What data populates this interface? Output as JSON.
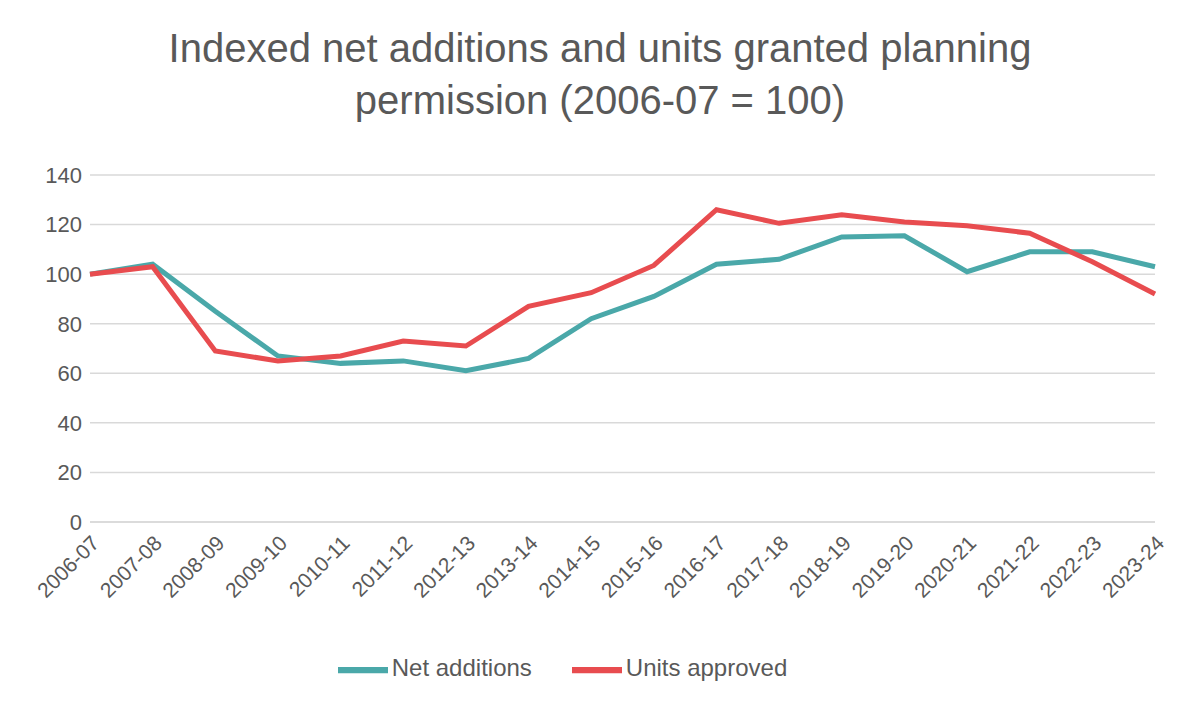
{
  "chart_data": {
    "type": "line",
    "title": "Indexed net additions and units granted planning permission (2006-07 = 100)",
    "categories": [
      "2006-07",
      "2007-08",
      "2008-09",
      "2009-10",
      "2010-11",
      "2011-12",
      "2012-13",
      "2013-14",
      "2014-15",
      "2015-16",
      "2016-17",
      "2017-18",
      "2018-19",
      "2019-20",
      "2020-21",
      "2021-22",
      "2022-23",
      "2023-24"
    ],
    "series": [
      {
        "name": "Net additions",
        "color": "#4aa8a9",
        "values": [
          100,
          104,
          85,
          67,
          64,
          65,
          61,
          66,
          82,
          91,
          104,
          106,
          115,
          115.5,
          101,
          109,
          109,
          103
        ]
      },
      {
        "name": "Units approved",
        "color": "#e84c4f",
        "values": [
          100,
          103,
          69,
          65,
          67,
          73,
          71,
          87,
          92.5,
          103.5,
          126,
          120.5,
          124,
          121,
          119.5,
          116.5,
          105,
          92
        ]
      }
    ],
    "ylim": [
      0,
      140
    ],
    "yticks": [
      0,
      20,
      40,
      60,
      80,
      100,
      120,
      140
    ],
    "grid": true,
    "legend": "bottom"
  }
}
